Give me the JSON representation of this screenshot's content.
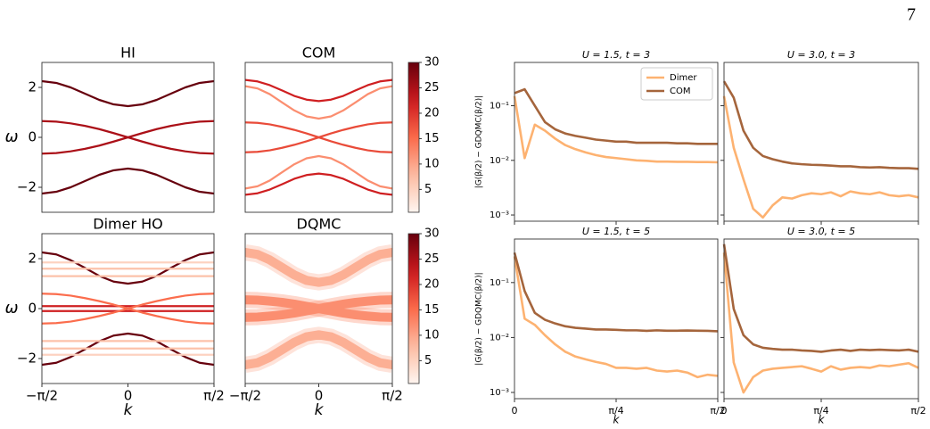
{
  "page_number": "7",
  "chart_data": [
    {
      "type": "spectral",
      "title": "HI",
      "ylabel": "ω",
      "xlim": [
        -1.571,
        1.571
      ],
      "ylim": [
        -3,
        3
      ],
      "yticks": [
        {
          "value": -2,
          "label": "−2"
        },
        0,
        2
      ],
      "colormap": "Reds",
      "broadening": 0.04,
      "x": [
        -1.571,
        -1.309,
        -1.047,
        -0.785,
        -0.524,
        -0.262,
        0,
        0.262,
        0.524,
        0.785,
        1.047,
        1.309,
        1.571
      ],
      "bands": [
        {
          "intensity": 30,
          "values": [
            2.25,
            2.18,
            2.0,
            1.75,
            1.5,
            1.32,
            1.25,
            1.32,
            1.5,
            1.75,
            2.0,
            2.18,
            2.25
          ]
        },
        {
          "intensity": 30,
          "values": [
            -2.25,
            -2.18,
            -2.0,
            -1.75,
            -1.5,
            -1.32,
            -1.25,
            -1.32,
            -1.5,
            -1.75,
            -2.0,
            -2.18,
            -2.25
          ]
        },
        {
          "intensity": 25,
          "values": [
            0.65,
            0.63,
            0.56,
            0.46,
            0.33,
            0.17,
            0,
            -0.17,
            -0.33,
            -0.46,
            -0.56,
            -0.63,
            -0.65
          ]
        },
        {
          "intensity": 25,
          "values": [
            -0.65,
            -0.63,
            -0.56,
            -0.46,
            -0.33,
            -0.17,
            0,
            0.17,
            0.33,
            0.46,
            0.56,
            0.63,
            0.65
          ]
        }
      ]
    },
    {
      "type": "spectral",
      "title": "COM",
      "xlim": [
        -1.571,
        1.571
      ],
      "ylim": [
        -3,
        3
      ],
      "colormap": "Reds",
      "broadening": 0.04,
      "colorbar": {
        "lim": [
          0.5,
          30
        ],
        "ticks": [
          5,
          10,
          15,
          20,
          25,
          30
        ]
      },
      "x": [
        -1.571,
        -1.309,
        -1.047,
        -0.785,
        -0.524,
        -0.262,
        0,
        0.262,
        0.524,
        0.785,
        1.047,
        1.309,
        1.571
      ],
      "bands": [
        {
          "intensity": 22,
          "values": [
            2.3,
            2.24,
            2.09,
            1.88,
            1.66,
            1.51,
            1.45,
            1.51,
            1.66,
            1.88,
            2.09,
            2.24,
            2.3
          ]
        },
        {
          "intensity": 22,
          "values": [
            -2.3,
            -2.24,
            -2.09,
            -1.88,
            -1.66,
            -1.51,
            -1.45,
            -1.51,
            -1.66,
            -1.88,
            -2.09,
            -2.24,
            -2.3
          ]
        },
        {
          "intensity": 12,
          "values": [
            2.05,
            1.96,
            1.73,
            1.4,
            1.08,
            0.84,
            0.75,
            0.84,
            1.08,
            1.4,
            1.73,
            1.96,
            2.05
          ]
        },
        {
          "intensity": 12,
          "values": [
            -2.05,
            -1.96,
            -1.73,
            -1.4,
            -1.08,
            -0.84,
            -0.75,
            -0.84,
            -1.08,
            -1.4,
            -1.73,
            -1.96,
            -2.05
          ]
        },
        {
          "intensity": 18,
          "values": [
            0.6,
            0.58,
            0.52,
            0.42,
            0.3,
            0.16,
            0,
            -0.16,
            -0.3,
            -0.42,
            -0.52,
            -0.58,
            -0.6
          ]
        },
        {
          "intensity": 18,
          "values": [
            -0.6,
            -0.58,
            -0.52,
            -0.42,
            -0.3,
            -0.16,
            0,
            0.16,
            0.3,
            0.42,
            0.52,
            0.58,
            0.6
          ]
        }
      ]
    },
    {
      "type": "spectral",
      "title": "Dimer HO",
      "xlabel": "k",
      "ylabel": "ω",
      "xlim": [
        -1.571,
        1.571
      ],
      "ylim": [
        -3,
        3
      ],
      "xticks": [
        {
          "value": -1.571,
          "label": "−π/2"
        },
        0,
        {
          "value": 1.571,
          "label": "π/2"
        }
      ],
      "yticks": [
        {
          "value": -2,
          "label": "−2"
        },
        0,
        2
      ],
      "colormap": "Reds",
      "broadening": 0.04,
      "x": [
        -1.571,
        -1.309,
        -1.047,
        -0.785,
        -0.524,
        -0.262,
        0,
        0.262,
        0.524,
        0.785,
        1.047,
        1.309,
        1.571
      ],
      "bands": [
        {
          "intensity": 30,
          "values": [
            2.25,
            2.17,
            1.94,
            1.63,
            1.31,
            1.08,
            1.0,
            1.08,
            1.31,
            1.63,
            1.94,
            2.17,
            2.25
          ]
        },
        {
          "intensity": 30,
          "values": [
            -2.25,
            -2.17,
            -1.94,
            -1.63,
            -1.31,
            -1.08,
            -1.0,
            -1.08,
            -1.31,
            -1.63,
            -1.94,
            -2.17,
            -2.25
          ]
        },
        {
          "intensity": 5,
          "values": [
            1.85,
            1.85,
            1.85,
            1.85,
            1.85,
            1.85,
            1.85,
            1.85,
            1.85,
            1.85,
            1.85,
            1.85,
            1.85
          ]
        },
        {
          "intensity": 5,
          "values": [
            -1.85,
            -1.85,
            -1.85,
            -1.85,
            -1.85,
            -1.85,
            -1.85,
            -1.85,
            -1.85,
            -1.85,
            -1.85,
            -1.85,
            -1.85
          ]
        },
        {
          "intensity": 7,
          "values": [
            1.6,
            1.6,
            1.6,
            1.6,
            1.6,
            1.6,
            1.6,
            1.6,
            1.6,
            1.6,
            1.6,
            1.6,
            1.6
          ]
        },
        {
          "intensity": 7,
          "values": [
            -1.6,
            -1.6,
            -1.6,
            -1.6,
            -1.6,
            -1.6,
            -1.6,
            -1.6,
            -1.6,
            -1.6,
            -1.6,
            -1.6,
            -1.6
          ]
        },
        {
          "intensity": 7,
          "values": [
            1.3,
            1.3,
            1.3,
            1.3,
            1.3,
            1.3,
            1.3,
            1.3,
            1.3,
            1.3,
            1.3,
            1.3,
            1.3
          ]
        },
        {
          "intensity": 7,
          "values": [
            -1.3,
            -1.3,
            -1.3,
            -1.3,
            -1.3,
            -1.3,
            -1.3,
            -1.3,
            -1.3,
            -1.3,
            -1.3,
            -1.3,
            -1.3
          ]
        },
        {
          "intensity": 22,
          "values": [
            0.1,
            0.1,
            0.1,
            0.1,
            0.1,
            0.1,
            0.1,
            0.1,
            0.1,
            0.1,
            0.1,
            0.1,
            0.1
          ]
        },
        {
          "intensity": 22,
          "values": [
            -0.1,
            -0.1,
            -0.1,
            -0.1,
            -0.1,
            -0.1,
            -0.1,
            -0.1,
            -0.1,
            -0.1,
            -0.1,
            -0.1,
            -0.1
          ]
        },
        {
          "intensity": 15,
          "values": [
            0.6,
            0.58,
            0.52,
            0.42,
            0.3,
            0.16,
            0,
            -0.16,
            -0.3,
            -0.42,
            -0.52,
            -0.58,
            -0.6
          ]
        },
        {
          "intensity": 15,
          "values": [
            -0.6,
            -0.58,
            -0.52,
            -0.42,
            -0.3,
            -0.16,
            0,
            0.16,
            0.3,
            0.42,
            0.52,
            0.58,
            0.6
          ]
        }
      ]
    },
    {
      "type": "spectral",
      "title": "DQMC",
      "xlabel": "k",
      "xlim": [
        -1.571,
        1.571
      ],
      "ylim": [
        -3,
        3
      ],
      "xticks": [
        {
          "value": -1.571,
          "label": "−π/2"
        },
        0,
        {
          "value": 1.571,
          "label": "π/2"
        }
      ],
      "colormap": "Reds",
      "broadening": 0.18,
      "colorbar": {
        "lim": [
          0.5,
          30
        ],
        "ticks": [
          5,
          10,
          15,
          20,
          25,
          30
        ]
      },
      "x": [
        -1.571,
        -1.309,
        -1.047,
        -0.785,
        -0.524,
        -0.262,
        0,
        0.262,
        0.524,
        0.785,
        1.047,
        1.309,
        1.571
      ],
      "bands": [
        {
          "intensity": 9,
          "values": [
            2.25,
            2.17,
            1.95,
            1.65,
            1.35,
            1.13,
            1.05,
            1.13,
            1.35,
            1.65,
            1.95,
            2.17,
            2.25
          ]
        },
        {
          "intensity": 9,
          "values": [
            -2.25,
            -2.17,
            -1.95,
            -1.65,
            -1.35,
            -1.13,
            -1.05,
            -1.13,
            -1.35,
            -1.65,
            -1.95,
            -2.17,
            -2.25
          ]
        },
        {
          "intensity": 12,
          "values": [
            0.35,
            0.34,
            0.3,
            0.25,
            0.18,
            0.09,
            0,
            -0.09,
            -0.18,
            -0.25,
            -0.3,
            -0.34,
            -0.35
          ]
        },
        {
          "intensity": 12,
          "values": [
            -0.35,
            -0.34,
            -0.3,
            -0.25,
            -0.18,
            -0.09,
            0,
            0.09,
            0.18,
            0.25,
            0.3,
            0.34,
            0.35
          ]
        }
      ]
    },
    {
      "type": "line",
      "title": "U = 1.5,  t = 3",
      "ylabel": "|G(β/2) − GDQMC(β/2)|",
      "yscale": "log",
      "legend": "upper right",
      "xlim": [
        0,
        1.5708
      ],
      "ylim": [
        0.00077,
        0.62
      ],
      "xticks": [
        0,
        0.7854,
        1.5708
      ],
      "xtick_labels": false,
      "yticks": [
        {
          "value": 0.1,
          "label": "10⁻¹"
        },
        {
          "value": 0.01,
          "label": "10⁻²"
        },
        {
          "value": 0.001,
          "label": "10⁻³"
        }
      ],
      "x": [
        0,
        0.0785,
        0.1571,
        0.2356,
        0.3142,
        0.3927,
        0.4712,
        0.5498,
        0.6283,
        0.7069,
        0.7854,
        0.8639,
        0.9425,
        1.021,
        1.0996,
        1.1781,
        1.2566,
        1.3352,
        1.4137,
        1.4923,
        1.5708
      ],
      "series": [
        {
          "name": "Dimer",
          "color": "#fdb271",
          "values": [
            0.15,
            0.011,
            0.045,
            0.035,
            0.025,
            0.019,
            0.016,
            0.014,
            0.0125,
            0.0115,
            0.011,
            0.0105,
            0.01,
            0.0098,
            0.0095,
            0.0095,
            0.0094,
            0.0094,
            0.0093,
            0.0093,
            0.0092
          ]
        },
        {
          "name": "COM",
          "color": "#a5653c",
          "values": [
            0.17,
            0.2,
            0.1,
            0.05,
            0.037,
            0.031,
            0.028,
            0.026,
            0.024,
            0.023,
            0.022,
            0.022,
            0.021,
            0.021,
            0.021,
            0.021,
            0.0205,
            0.0205,
            0.02,
            0.02,
            0.02
          ]
        }
      ]
    },
    {
      "type": "line",
      "title": "U = 3.0,  t = 3",
      "yscale": "log",
      "xlim": [
        0,
        1.5708
      ],
      "ylim": [
        0.00077,
        0.62
      ],
      "xticks": [
        0,
        0.7854,
        1.5708
      ],
      "xtick_labels": false,
      "yticks": [
        0.1,
        0.01,
        0.001
      ],
      "ytick_labels": false,
      "x": [
        0,
        0.0785,
        0.1571,
        0.2356,
        0.3142,
        0.3927,
        0.4712,
        0.5498,
        0.6283,
        0.7069,
        0.7854,
        0.8639,
        0.9425,
        1.021,
        1.0996,
        1.1781,
        1.2566,
        1.3352,
        1.4137,
        1.4923,
        1.5708
      ],
      "series": [
        {
          "color": "#fdb271",
          "values": [
            0.15,
            0.017,
            0.0045,
            0.0013,
            0.0009,
            0.0015,
            0.0021,
            0.002,
            0.0023,
            0.0025,
            0.0024,
            0.0026,
            0.0022,
            0.0027,
            0.0025,
            0.0024,
            0.0026,
            0.0023,
            0.0022,
            0.0023,
            0.0021
          ]
        },
        {
          "color": "#a5653c",
          "values": [
            0.28,
            0.14,
            0.035,
            0.017,
            0.012,
            0.0105,
            0.0095,
            0.0088,
            0.0085,
            0.0083,
            0.0082,
            0.008,
            0.0078,
            0.0078,
            0.0075,
            0.0074,
            0.0075,
            0.0073,
            0.0072,
            0.0072,
            0.007
          ]
        }
      ]
    },
    {
      "type": "line",
      "title": "U = 1.5,  t = 5",
      "ylabel": "|G(β/2) − GDQMC(β/2)|",
      "xlabel": "k",
      "yscale": "log",
      "xlim": [
        0,
        1.5708
      ],
      "ylim": [
        0.00077,
        0.62
      ],
      "xticks": [
        0,
        {
          "value": 0.7854,
          "label": "π/4"
        },
        {
          "value": 1.5708,
          "label": "π/2"
        }
      ],
      "yticks": [
        {
          "value": 0.1,
          "label": "10⁻¹"
        },
        {
          "value": 0.01,
          "label": "10⁻²"
        },
        {
          "value": 0.001,
          "label": "10⁻³"
        }
      ],
      "x": [
        0,
        0.0785,
        0.1571,
        0.2356,
        0.3142,
        0.3927,
        0.4712,
        0.5498,
        0.6283,
        0.7069,
        0.7854,
        0.8639,
        0.9425,
        1.021,
        1.0996,
        1.1781,
        1.2566,
        1.3352,
        1.4137,
        1.4923,
        1.5708
      ],
      "series": [
        {
          "color": "#fdb271",
          "values": [
            0.3,
            0.022,
            0.017,
            0.011,
            0.0075,
            0.0055,
            0.0045,
            0.004,
            0.0036,
            0.0033,
            0.0028,
            0.0028,
            0.0027,
            0.0028,
            0.0025,
            0.0024,
            0.0025,
            0.0023,
            0.0019,
            0.0021,
            0.002
          ]
        },
        {
          "color": "#a5653c",
          "values": [
            0.35,
            0.07,
            0.028,
            0.021,
            0.018,
            0.016,
            0.015,
            0.0145,
            0.014,
            0.014,
            0.0138,
            0.0135,
            0.0135,
            0.0132,
            0.0135,
            0.0133,
            0.0133,
            0.0134,
            0.0133,
            0.0132,
            0.013
          ]
        }
      ]
    },
    {
      "type": "line",
      "title": "U = 3.0,  t = 5",
      "xlabel": "k",
      "yscale": "log",
      "xlim": [
        0,
        1.5708
      ],
      "ylim": [
        0.00077,
        0.62
      ],
      "xticks": [
        0,
        {
          "value": 0.7854,
          "label": "π/4"
        },
        {
          "value": 1.5708,
          "label": "π/2"
        }
      ],
      "yticks": [
        0.1,
        0.01,
        0.001
      ],
      "ytick_labels": false,
      "x": [
        0,
        0.0785,
        0.1571,
        0.2356,
        0.3142,
        0.3927,
        0.4712,
        0.5498,
        0.6283,
        0.7069,
        0.7854,
        0.8639,
        0.9425,
        1.021,
        1.0996,
        1.1781,
        1.2566,
        1.3352,
        1.4137,
        1.4923,
        1.5708
      ],
      "series": [
        {
          "color": "#fdb271",
          "values": [
            0.35,
            0.0035,
            0.001,
            0.0019,
            0.0025,
            0.0027,
            0.0028,
            0.0029,
            0.003,
            0.0027,
            0.0024,
            0.003,
            0.0026,
            0.0028,
            0.0029,
            0.0028,
            0.0031,
            0.003,
            0.0032,
            0.0034,
            0.0028
          ]
        },
        {
          "color": "#a5653c",
          "values": [
            0.5,
            0.033,
            0.011,
            0.0075,
            0.0065,
            0.0062,
            0.006,
            0.006,
            0.0058,
            0.0057,
            0.0055,
            0.0058,
            0.006,
            0.0057,
            0.006,
            0.0059,
            0.006,
            0.0059,
            0.0058,
            0.006,
            0.0055
          ]
        }
      ]
    }
  ]
}
